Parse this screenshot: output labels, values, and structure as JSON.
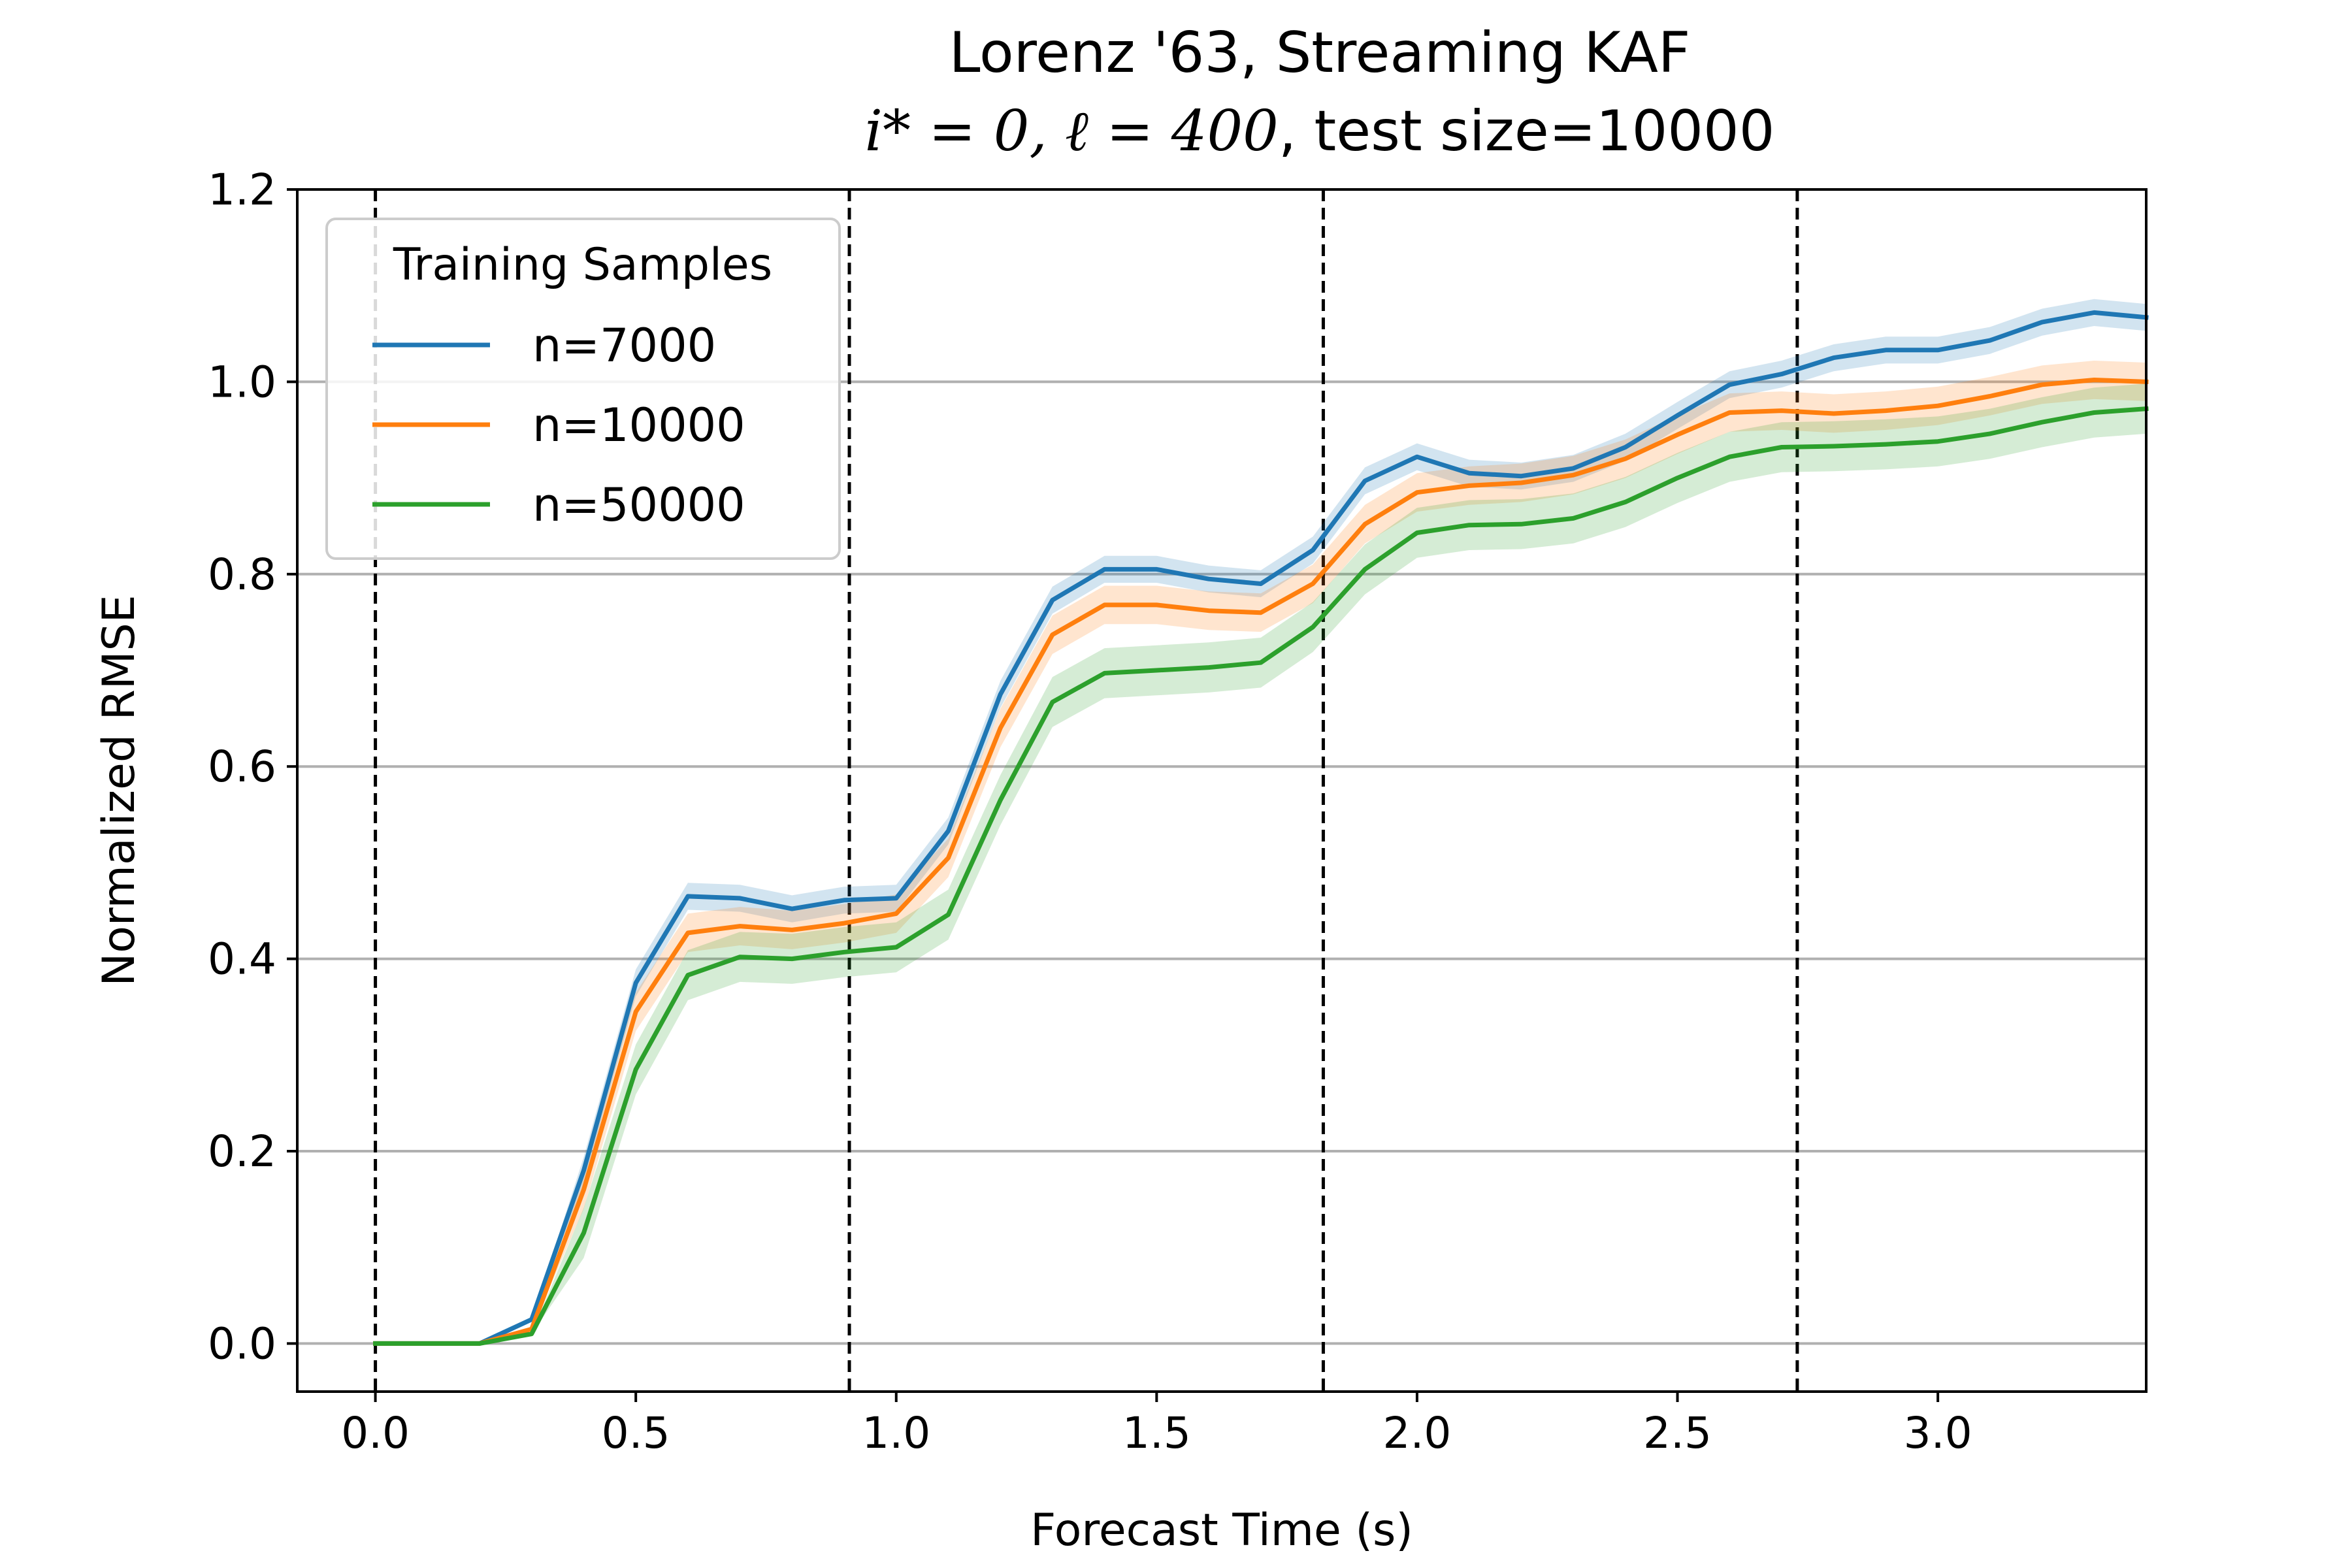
{
  "chart_data": {
    "type": "line",
    "title_line1": "Lorenz '63, Streaming KAF",
    "title_line2_math": "i* = 0, ℓ = 400",
    "title_line2_rest": ", test size=10000",
    "xlabel": "Forecast Time (s)",
    "ylabel": "Normalized RMSE",
    "xlim": [
      -0.15,
      3.4
    ],
    "ylim": [
      -0.05,
      1.2
    ],
    "xticks": [
      0.0,
      0.5,
      1.0,
      1.5,
      2.0,
      2.5,
      3.0
    ],
    "xtick_labels": [
      "0.0",
      "0.5",
      "1.0",
      "1.5",
      "2.0",
      "2.5",
      "3.0"
    ],
    "yticks": [
      0.0,
      0.2,
      0.4,
      0.6,
      0.8,
      1.0,
      1.2
    ],
    "ytick_labels": [
      "0.0",
      "0.2",
      "0.4",
      "0.6",
      "0.8",
      "1.0",
      "1.2"
    ],
    "grid": "horizontal",
    "vlines": [
      0.0,
      0.91,
      1.82,
      2.73
    ],
    "legend": {
      "title": "Training Samples",
      "placement": "top-left"
    },
    "x": [
      0.0,
      0.1,
      0.2,
      0.3,
      0.4,
      0.5,
      0.6,
      0.7,
      0.8,
      0.9,
      1.0,
      1.1,
      1.2,
      1.3,
      1.4,
      1.5,
      1.6,
      1.7,
      1.8,
      1.9,
      2.0,
      2.1,
      2.2,
      2.3,
      2.4,
      2.5,
      2.6,
      2.7,
      2.8,
      2.9,
      3.0,
      3.1,
      3.2,
      3.3,
      3.4
    ],
    "series": [
      {
        "name": "n=7000",
        "color": "#1f77b4",
        "values": [
          0.0,
          0.0,
          0.0,
          0.025,
          0.18,
          0.375,
          0.465,
          0.463,
          0.452,
          0.461,
          0.463,
          0.533,
          0.675,
          0.773,
          0.805,
          0.805,
          0.795,
          0.79,
          0.825,
          0.897,
          0.922,
          0.905,
          0.902,
          0.91,
          0.932,
          0.965,
          0.997,
          1.008,
          1.025,
          1.033,
          1.033,
          1.043,
          1.062,
          1.072,
          1.067
        ],
        "band": 0.014
      },
      {
        "name": "n=10000",
        "color": "#ff7f0e",
        "values": [
          0.0,
          0.0,
          0.0,
          0.015,
          0.16,
          0.345,
          0.427,
          0.434,
          0.43,
          0.437,
          0.447,
          0.505,
          0.64,
          0.737,
          0.768,
          0.768,
          0.762,
          0.76,
          0.79,
          0.852,
          0.885,
          0.892,
          0.895,
          0.903,
          0.92,
          0.945,
          0.968,
          0.97,
          0.967,
          0.97,
          0.975,
          0.985,
          0.997,
          1.002,
          1.0
        ],
        "band": 0.02
      },
      {
        "name": "n=50000",
        "color": "#2ca02c",
        "values": [
          0.0,
          0.0,
          0.0,
          0.01,
          0.115,
          0.285,
          0.383,
          0.402,
          0.4,
          0.407,
          0.412,
          0.446,
          0.565,
          0.667,
          0.697,
          0.7,
          0.703,
          0.708,
          0.745,
          0.805,
          0.843,
          0.851,
          0.852,
          0.858,
          0.875,
          0.9,
          0.922,
          0.932,
          0.933,
          0.935,
          0.938,
          0.946,
          0.958,
          0.968,
          0.972
        ],
        "band": 0.026
      }
    ]
  }
}
